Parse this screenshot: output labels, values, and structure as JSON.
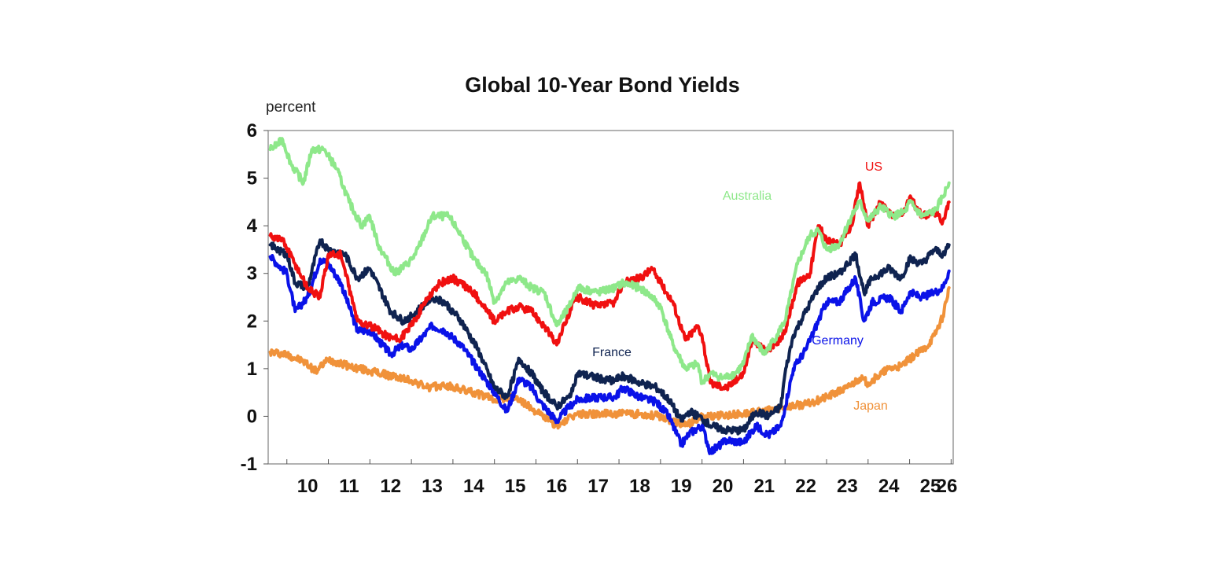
{
  "chart_data": {
    "type": "line",
    "title": "Global 10-Year Bond Yields",
    "ylabel": "percent",
    "xlabel": "",
    "ylim": [
      -1,
      6
    ],
    "yticks": [
      "-1",
      "0",
      "1",
      "2",
      "3",
      "4",
      "5",
      "6"
    ],
    "xlim": [
      2009.55,
      2026.05
    ],
    "xticks": [
      "10",
      "11",
      "12",
      "13",
      "14",
      "15",
      "16",
      "17",
      "18",
      "19",
      "20",
      "21",
      "22",
      "23",
      "24",
      "25",
      "26"
    ],
    "grid": false,
    "legend": "inline labels",
    "series": [
      {
        "name": "Japan",
        "color": "#F0923A",
        "x": [
          2009.6,
          2010.0,
          2010.4,
          2010.7,
          2011.0,
          2011.5,
          2012.0,
          2012.5,
          2013.0,
          2013.4,
          2013.8,
          2014.5,
          2015.0,
          2015.5,
          2016.0,
          2016.5,
          2017.0,
          2017.5,
          2018.0,
          2018.5,
          2019.0,
          2019.6,
          2020.0,
          2020.5,
          2021.0,
          2021.5,
          2022.0,
          2022.5,
          2023.0,
          2023.5,
          2023.8,
          2024.0,
          2024.5,
          2024.8,
          2025.0,
          2025.4,
          2025.6,
          2025.8,
          2025.95
        ],
        "values": [
          1.35,
          1.3,
          1.15,
          0.95,
          1.2,
          1.05,
          0.95,
          0.85,
          0.75,
          0.6,
          0.65,
          0.5,
          0.35,
          0.4,
          0.1,
          -0.2,
          0.05,
          0.05,
          0.05,
          0.05,
          0.0,
          -0.2,
          0.0,
          0.02,
          0.05,
          0.1,
          0.2,
          0.25,
          0.4,
          0.6,
          0.8,
          0.7,
          1.0,
          1.05,
          1.2,
          1.45,
          1.7,
          2.1,
          2.7
        ]
      },
      {
        "name": "Germany",
        "color": "#0A12E8",
        "x": [
          2009.6,
          2010.0,
          2010.2,
          2010.5,
          2010.8,
          2011.0,
          2011.3,
          2011.7,
          2012.0,
          2012.5,
          2012.8,
          2013.0,
          2013.5,
          2013.8,
          2014.2,
          2014.6,
          2015.0,
          2015.3,
          2015.6,
          2015.9,
          2016.1,
          2016.5,
          2016.8,
          2017.0,
          2017.5,
          2017.9,
          2018.1,
          2018.5,
          2018.9,
          2019.2,
          2019.5,
          2019.7,
          2020.0,
          2020.2,
          2020.6,
          2021.0,
          2021.3,
          2021.6,
          2021.9,
          2022.0,
          2022.2,
          2022.5,
          2022.8,
          2023.0,
          2023.3,
          2023.7,
          2023.9,
          2024.1,
          2024.5,
          2024.8,
          2025.0,
          2025.3,
          2025.6,
          2025.8,
          2025.95
        ],
        "values": [
          3.35,
          3.0,
          2.2,
          2.5,
          3.3,
          3.2,
          2.8,
          1.8,
          1.8,
          1.3,
          1.5,
          1.4,
          1.9,
          1.8,
          1.5,
          1.0,
          0.5,
          0.1,
          0.8,
          0.6,
          0.3,
          -0.1,
          0.2,
          0.35,
          0.4,
          0.4,
          0.6,
          0.4,
          0.3,
          0.0,
          -0.6,
          -0.35,
          -0.2,
          -0.75,
          -0.5,
          -0.55,
          -0.2,
          -0.4,
          -0.2,
          0.2,
          1.0,
          1.4,
          2.0,
          2.4,
          2.4,
          2.9,
          2.0,
          2.4,
          2.5,
          2.2,
          2.6,
          2.5,
          2.6,
          2.7,
          3.05
        ]
      },
      {
        "name": "France",
        "color": "#0F2350",
        "x": [
          2009.6,
          2010.0,
          2010.2,
          2010.5,
          2010.8,
          2011.0,
          2011.4,
          2011.7,
          2012.0,
          2012.5,
          2012.8,
          2013.0,
          2013.5,
          2013.8,
          2014.2,
          2014.6,
          2015.0,
          2015.3,
          2015.6,
          2015.9,
          2016.1,
          2016.5,
          2016.8,
          2017.0,
          2017.5,
          2017.9,
          2018.1,
          2018.5,
          2018.9,
          2019.2,
          2019.5,
          2019.7,
          2020.0,
          2020.2,
          2020.6,
          2021.0,
          2021.3,
          2021.6,
          2021.9,
          2022.0,
          2022.2,
          2022.5,
          2022.8,
          2023.0,
          2023.3,
          2023.7,
          2023.9,
          2024.1,
          2024.5,
          2024.8,
          2025.0,
          2025.3,
          2025.6,
          2025.8,
          2025.95
        ],
        "values": [
          3.6,
          3.4,
          2.8,
          2.7,
          3.7,
          3.5,
          3.4,
          2.9,
          3.1,
          2.2,
          2.0,
          2.1,
          2.5,
          2.4,
          2.0,
          1.4,
          0.6,
          0.4,
          1.2,
          0.9,
          0.6,
          0.2,
          0.4,
          0.9,
          0.8,
          0.75,
          0.85,
          0.7,
          0.6,
          0.35,
          -0.1,
          0.1,
          -0.05,
          -0.2,
          -0.3,
          -0.3,
          0.1,
          0.0,
          0.2,
          0.9,
          1.7,
          2.2,
          2.7,
          2.9,
          3.0,
          3.4,
          2.6,
          2.9,
          3.1,
          2.9,
          3.3,
          3.2,
          3.5,
          3.4,
          3.6
        ]
      },
      {
        "name": "US",
        "color": "#F01010",
        "x": [
          2009.6,
          2009.9,
          2010.2,
          2010.5,
          2010.8,
          2011.0,
          2011.3,
          2011.7,
          2012.0,
          2012.4,
          2012.7,
          2013.0,
          2013.4,
          2013.7,
          2014.0,
          2014.5,
          2015.0,
          2015.3,
          2015.6,
          2015.9,
          2016.2,
          2016.5,
          2016.9,
          2017.0,
          2017.5,
          2017.9,
          2018.1,
          2018.5,
          2018.8,
          2019.0,
          2019.3,
          2019.6,
          2019.9,
          2020.0,
          2020.2,
          2020.6,
          2021.0,
          2021.2,
          2021.5,
          2021.8,
          2022.0,
          2022.3,
          2022.6,
          2022.8,
          2023.0,
          2023.3,
          2023.6,
          2023.8,
          2024.0,
          2024.3,
          2024.6,
          2024.9,
          2025.0,
          2025.3,
          2025.6,
          2025.8,
          2025.95
        ],
        "values": [
          3.8,
          3.7,
          3.2,
          2.7,
          2.5,
          3.4,
          3.4,
          2.0,
          1.9,
          1.7,
          1.6,
          1.9,
          2.5,
          2.8,
          2.9,
          2.6,
          2.0,
          2.2,
          2.3,
          2.2,
          1.9,
          1.5,
          2.4,
          2.5,
          2.3,
          2.4,
          2.8,
          2.9,
          3.1,
          2.8,
          2.4,
          1.6,
          1.9,
          1.7,
          0.7,
          0.6,
          0.9,
          1.6,
          1.4,
          1.5,
          1.8,
          2.8,
          3.0,
          4.0,
          3.7,
          3.6,
          4.0,
          4.9,
          4.0,
          4.5,
          4.2,
          4.3,
          4.6,
          4.2,
          4.3,
          4.1,
          4.5
        ]
      },
      {
        "name": "Australia",
        "color": "#8EE88A",
        "x": [
          2009.6,
          2009.9,
          2010.1,
          2010.4,
          2010.6,
          2010.9,
          2011.2,
          2011.5,
          2011.8,
          2012.0,
          2012.2,
          2012.6,
          2012.9,
          2013.1,
          2013.5,
          2013.9,
          2014.2,
          2014.5,
          2014.8,
          2015.0,
          2015.3,
          2015.6,
          2015.9,
          2016.2,
          2016.5,
          2016.8,
          2017.0,
          2017.5,
          2017.9,
          2018.1,
          2018.5,
          2018.8,
          2019.0,
          2019.3,
          2019.6,
          2019.9,
          2020.0,
          2020.2,
          2020.5,
          2020.8,
          2021.0,
          2021.2,
          2021.5,
          2021.8,
          2022.0,
          2022.3,
          2022.6,
          2022.8,
          2023.0,
          2023.3,
          2023.6,
          2023.8,
          2024.0,
          2024.3,
          2024.6,
          2024.9,
          2025.0,
          2025.3,
          2025.6,
          2025.8,
          2025.95
        ],
        "values": [
          5.6,
          5.8,
          5.3,
          4.9,
          5.6,
          5.6,
          5.2,
          4.5,
          4.0,
          4.2,
          3.6,
          3.0,
          3.2,
          3.4,
          4.2,
          4.2,
          3.8,
          3.3,
          3.0,
          2.4,
          2.8,
          2.9,
          2.7,
          2.6,
          1.9,
          2.3,
          2.7,
          2.6,
          2.7,
          2.8,
          2.7,
          2.5,
          2.3,
          1.5,
          1.0,
          1.1,
          0.7,
          0.9,
          0.8,
          0.9,
          1.1,
          1.7,
          1.3,
          1.7,
          2.0,
          3.2,
          3.8,
          3.9,
          3.5,
          3.6,
          4.2,
          4.5,
          4.1,
          4.4,
          4.2,
          4.3,
          4.5,
          4.2,
          4.3,
          4.6,
          4.9
        ]
      }
    ]
  }
}
